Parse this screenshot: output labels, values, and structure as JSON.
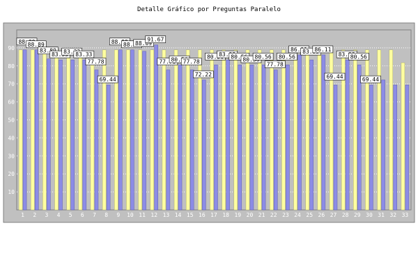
{
  "chart_data": {
    "type": "bar",
    "title": "Detalle Gráfico por Preguntas Paralelo",
    "xlabel": "",
    "ylabel": "",
    "ylim": [
      0,
      100
    ],
    "yticks": [
      10,
      20,
      30,
      40,
      50,
      60,
      70,
      80,
      90
    ],
    "grid": true,
    "categories": [
      "1",
      "2",
      "3",
      "4",
      "5",
      "6",
      "7",
      "8",
      "9",
      "10",
      "11",
      "12",
      "13",
      "14",
      "15",
      "16",
      "17",
      "18",
      "19",
      "20",
      "21",
      "22",
      "23",
      "24",
      "25",
      "26",
      "27",
      "28",
      "29",
      "30",
      "31",
      "32",
      "33"
    ],
    "series": [
      {
        "color": "#8c8ce6",
        "values": [
          88.89,
          88.89,
          83.89,
          83.33,
          83.33,
          83.33,
          77.78,
          69.44,
          88.89,
          88.89,
          88.09,
          91.67,
          77.78,
          80.56,
          77.78,
          72.22,
          80.56,
          83.33,
          80.56,
          80.56,
          80.56,
          77.78,
          80.56,
          86.11,
          83.33,
          86.11,
          69.44,
          83.33,
          80.56,
          69.44,
          72.22,
          69.44,
          69.44
        ]
      },
      {
        "color": "#ffffa0",
        "values": [
          88.89,
          88.89,
          88.89,
          88.89,
          88.89,
          88.89,
          83.33,
          88.89,
          88.89,
          88.89,
          88.89,
          88.89,
          88.89,
          88.89,
          88.89,
          88.89,
          88.89,
          88.89,
          88.89,
          88.89,
          88.89,
          88.89,
          88.89,
          88.89,
          88.89,
          88.89,
          88.89,
          88.89,
          88.89,
          88.89,
          88.89,
          88.89,
          81.74
        ]
      }
    ],
    "data_labels": [
      {
        "index": 0,
        "text": "88.89"
      },
      {
        "index": 1,
        "text": "88.89"
      },
      {
        "index": 2,
        "text": "83.89"
      },
      {
        "index": 3,
        "text": "83.33"
      },
      {
        "index": 4,
        "text": "83.33"
      },
      {
        "index": 5,
        "text": "83.33"
      },
      {
        "index": 6,
        "text": "77.78"
      },
      {
        "index": 7,
        "text": "69.44"
      },
      {
        "index": 8,
        "text": "88.89"
      },
      {
        "index": 9,
        "text": "88.89"
      },
      {
        "index": 10,
        "text": "88.09"
      },
      {
        "index": 11,
        "text": "91.67"
      },
      {
        "index": 12,
        "text": "77.78"
      },
      {
        "index": 13,
        "text": "80.56"
      },
      {
        "index": 14,
        "text": "77.78"
      },
      {
        "index": 15,
        "text": "72.22"
      },
      {
        "index": 16,
        "text": "80.56"
      },
      {
        "index": 17,
        "text": "83.33"
      },
      {
        "index": 18,
        "text": "80.56"
      },
      {
        "index": 19,
        "text": "80.56"
      },
      {
        "index": 20,
        "text": "80.56"
      },
      {
        "index": 21,
        "text": "77.78"
      },
      {
        "index": 22,
        "text": "80.56"
      },
      {
        "index": 23,
        "text": "86.11"
      },
      {
        "index": 24,
        "text": "83.33"
      },
      {
        "index": 25,
        "text": "86.11"
      },
      {
        "index": 26,
        "text": "69.44"
      },
      {
        "index": 27,
        "text": "83.33"
      },
      {
        "index": 28,
        "text": "80.56"
      },
      {
        "index": 29,
        "text": "69.44"
      }
    ]
  }
}
